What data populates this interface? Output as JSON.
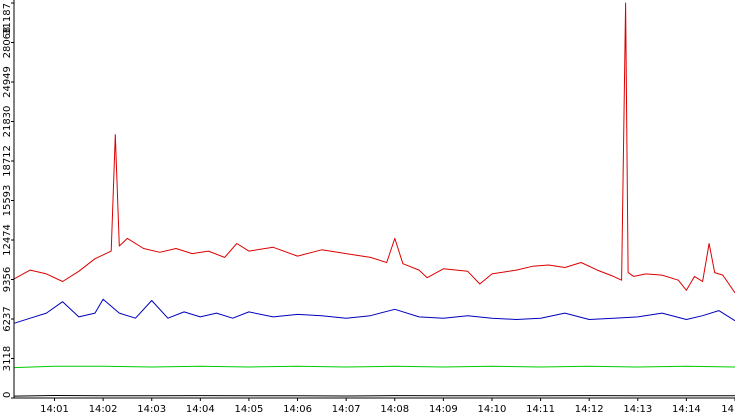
{
  "chart_data": {
    "type": "line",
    "title": "",
    "xlabel": "",
    "ylabel": "",
    "grid": false,
    "legend": "none",
    "xlim": [
      "14:00:10",
      "14:15:00"
    ],
    "ylim": [
      0,
      31187
    ],
    "y_ticks": [
      "0",
      "3118",
      "6237",
      "9356",
      "12474",
      "15593",
      "18712",
      "21830",
      "24949",
      "28068",
      "31187"
    ],
    "x_ticks": [
      "14:01",
      "14:02",
      "14:03",
      "14:04",
      "14:05",
      "14:06",
      "14:07",
      "14:08",
      "14:09",
      "14:10",
      "14:11",
      "14:12",
      "14:13",
      "14:14",
      "14"
    ],
    "series": [
      {
        "color": "#dd0000",
        "x": [
          "14:00:10",
          "14:00:30",
          "14:00:50",
          "14:01:10",
          "14:01:30",
          "14:01:50",
          "14:02:00",
          "14:02:10",
          "14:02:15",
          "14:02:20",
          "14:02:30",
          "14:02:50",
          "14:03:10",
          "14:03:30",
          "14:03:50",
          "14:04:10",
          "14:04:30",
          "14:04:45",
          "14:05:00",
          "14:05:30",
          "14:06:00",
          "14:06:30",
          "14:07:00",
          "14:07:30",
          "14:07:50",
          "14:08:00",
          "14:08:10",
          "14:08:30",
          "14:08:40",
          "14:09:00",
          "14:09:30",
          "14:09:45",
          "14:10:00",
          "14:10:30",
          "14:10:50",
          "14:11:10",
          "14:11:30",
          "14:11:50",
          "14:12:10",
          "14:12:30",
          "14:12:40",
          "14:12:45",
          "14:12:48",
          "14:12:55",
          "14:13:10",
          "14:13:30",
          "14:13:50",
          "14:14:00",
          "14:14:10",
          "14:14:20",
          "14:14:28",
          "14:14:35",
          "14:14:45",
          "14:15:00"
        ],
        "values": [
          9400,
          10100,
          9800,
          9200,
          10000,
          11000,
          11300,
          11600,
          20800,
          12000,
          12600,
          11800,
          11500,
          11800,
          11400,
          11600,
          11100,
          12200,
          11600,
          11900,
          11200,
          11700,
          11400,
          11100,
          10700,
          12600,
          10600,
          10100,
          9500,
          10200,
          10000,
          9000,
          9800,
          10100,
          10400,
          10500,
          10300,
          10700,
          10100,
          9600,
          9300,
          31187,
          9900,
          9600,
          9800,
          9700,
          9300,
          8500,
          9600,
          9200,
          12200,
          9900,
          9700,
          8300
        ]
      },
      {
        "color": "#0000bb",
        "x": [
          "14:00:10",
          "14:00:30",
          "14:00:50",
          "14:01:10",
          "14:01:30",
          "14:01:50",
          "14:02:00",
          "14:02:20",
          "14:02:40",
          "14:03:00",
          "14:03:20",
          "14:03:40",
          "14:04:00",
          "14:04:20",
          "14:04:40",
          "14:05:00",
          "14:05:30",
          "14:06:00",
          "14:06:30",
          "14:07:00",
          "14:07:30",
          "14:08:00",
          "14:08:30",
          "14:09:00",
          "14:09:30",
          "14:10:00",
          "14:10:30",
          "14:11:00",
          "14:11:30",
          "14:12:00",
          "14:12:30",
          "14:13:00",
          "14:13:30",
          "14:14:00",
          "14:14:20",
          "14:14:40",
          "14:15:00"
        ],
        "values": [
          5900,
          6300,
          6700,
          7600,
          6400,
          6700,
          7800,
          6700,
          6300,
          7700,
          6300,
          6800,
          6400,
          6700,
          6300,
          6800,
          6400,
          6600,
          6500,
          6300,
          6500,
          7000,
          6400,
          6300,
          6500,
          6300,
          6200,
          6300,
          6700,
          6200,
          6300,
          6400,
          6700,
          6200,
          6500,
          6900,
          6100
        ]
      },
      {
        "color": "#00cc00",
        "x": [
          "14:00:10",
          "14:01:00",
          "14:02:00",
          "14:03:00",
          "14:04:00",
          "14:05:00",
          "14:06:00",
          "14:07:00",
          "14:08:00",
          "14:09:00",
          "14:10:00",
          "14:11:00",
          "14:12:00",
          "14:13:00",
          "14:14:00",
          "14:15:00"
        ],
        "values": [
          2400,
          2500,
          2500,
          2450,
          2500,
          2450,
          2500,
          2450,
          2500,
          2450,
          2500,
          2450,
          2500,
          2450,
          2500,
          2450
        ]
      },
      {
        "color": "#000000",
        "x": [
          "14:00:10",
          "14:01:00",
          "14:02:00",
          "14:03:00",
          "14:04:00",
          "14:05:00",
          "14:06:00",
          "14:07:00",
          "14:08:00",
          "14:09:00",
          "14:10:00",
          "14:11:00",
          "14:12:00",
          "14:13:00",
          "14:14:00",
          "14:15:00"
        ],
        "values": [
          150,
          200,
          180,
          170,
          190,
          170,
          180,
          160,
          190,
          170,
          180,
          170,
          190,
          170,
          180,
          170
        ]
      }
    ]
  }
}
